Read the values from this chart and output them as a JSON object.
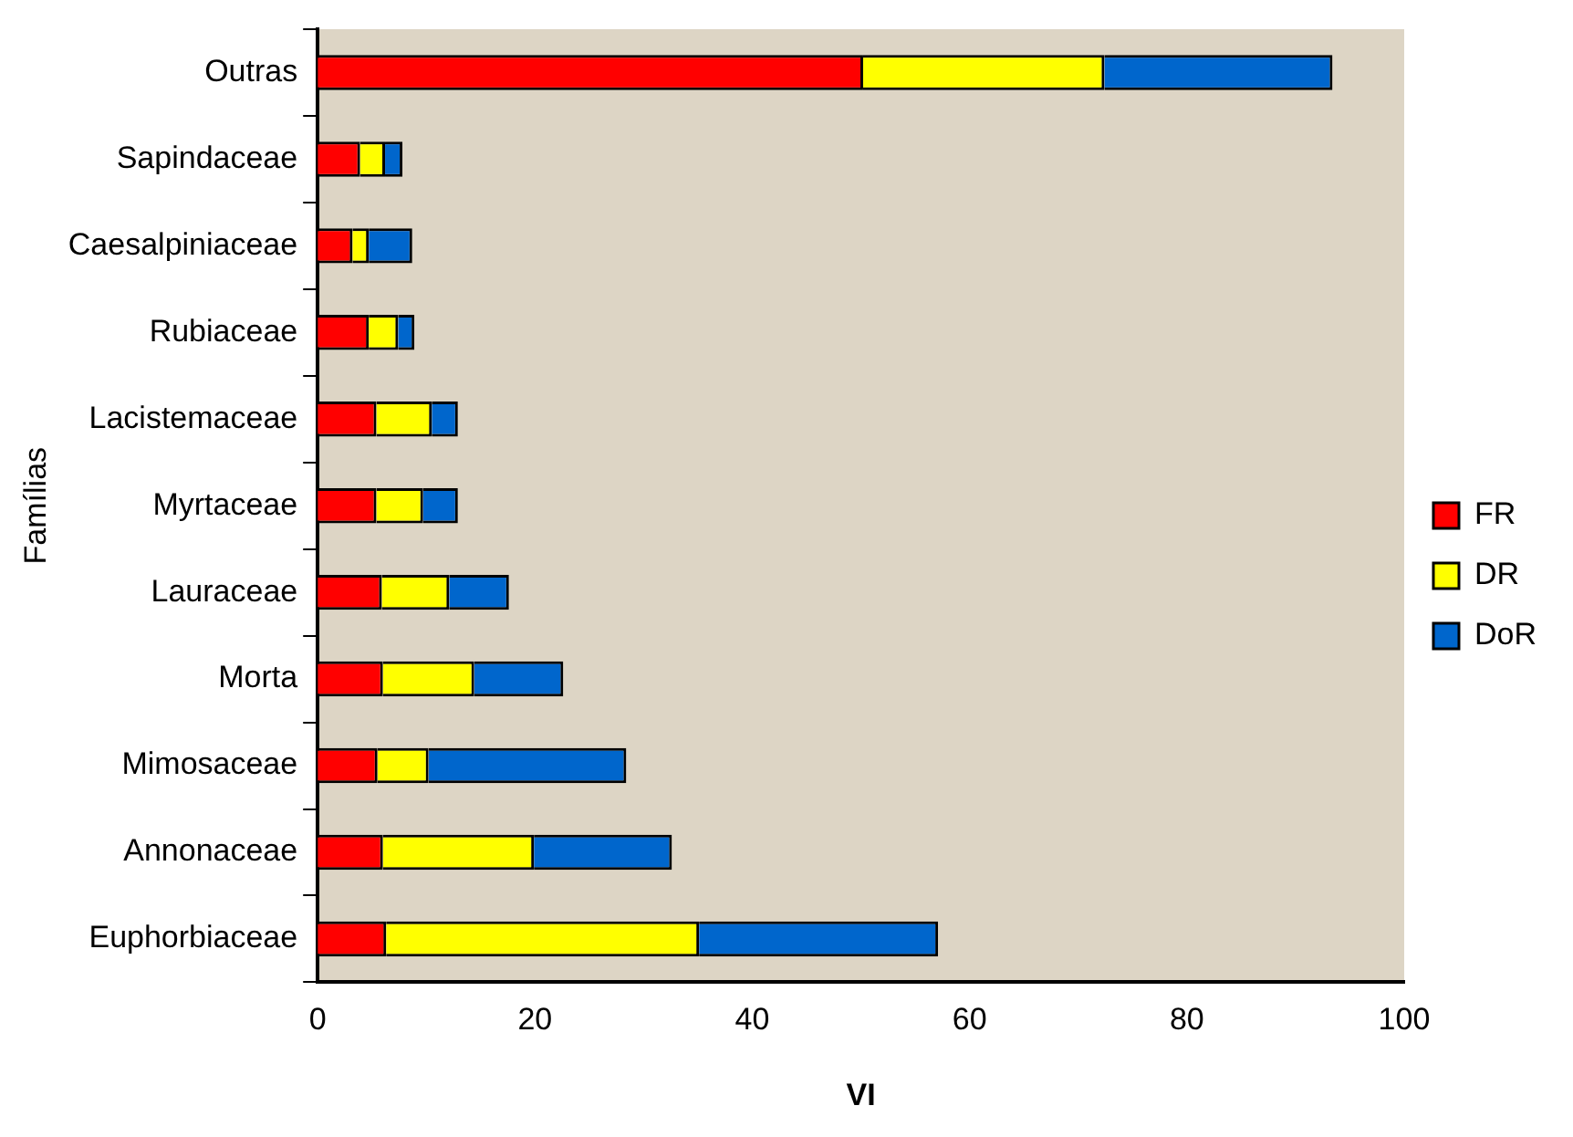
{
  "chart_data": {
    "type": "bar",
    "orientation": "horizontal",
    "stacked": true,
    "xlabel": "VI",
    "ylabel": "Famílias",
    "categories": [
      "Outras",
      "Sapindaceae",
      "Caesalpiniaceae",
      "Rubiaceae",
      "Lacistemaceae",
      "Myrtaceae",
      "Lauraceae",
      "Morta",
      "Mimosaceae",
      "Annonaceae",
      "Euphorbiaceae"
    ],
    "series": [
      {
        "name": "FR",
        "color": "#ff0000",
        "values": [
          50.2,
          3.9,
          3.2,
          4.7,
          5.4,
          5.4,
          5.9,
          6.0,
          5.5,
          6.0,
          6.3
        ]
      },
      {
        "name": "DR",
        "color": "#ffff00",
        "values": [
          22.2,
          2.3,
          1.5,
          2.7,
          5.1,
          4.3,
          6.2,
          8.4,
          4.7,
          13.9,
          28.8
        ]
      },
      {
        "name": "DoR",
        "color": "#0066cc",
        "values": [
          21.0,
          1.6,
          4.0,
          1.5,
          2.4,
          3.2,
          5.5,
          8.2,
          18.2,
          12.7,
          22.0
        ]
      }
    ],
    "xlim": [
      0,
      100
    ],
    "xticks": [
      0,
      20,
      40,
      60,
      80,
      100
    ],
    "grid": false,
    "legend": "right"
  }
}
